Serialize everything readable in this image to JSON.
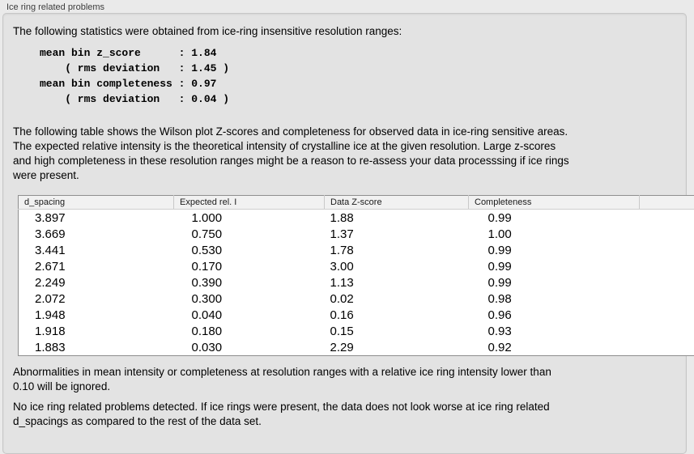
{
  "panel": {
    "title": "Ice ring related problems"
  },
  "stats": {
    "intro": "The following statistics were obtained from ice-ring insensitive resolution ranges:",
    "block": "mean bin z_score      : 1.84\n    ( rms deviation   : 1.45 )\nmean bin completeness : 0.97\n    ( rms deviation   : 0.04 )",
    "values": {
      "mean_bin_z_score": "1.84",
      "z_score_rms_deviation": "1.45",
      "mean_bin_completeness": "0.97",
      "completeness_rms_deviation": "0.04"
    }
  },
  "table_description": "The following table shows the Wilson plot Z-scores and completeness for observed data in ice-ring sensitive areas.\nThe expected relative intensity is the theoretical intensity of crystalline ice at the given resolution. Large z-scores\nand high completeness in these resolution ranges might be a reason to re-assess your data processsing if ice rings\nwere present.",
  "table": {
    "columns": [
      "d_spacing",
      "Expected rel. I",
      "Data Z-score",
      "Completeness"
    ],
    "rows": [
      [
        "3.897",
        "1.000",
        "1.88",
        "0.99"
      ],
      [
        "3.669",
        "0.750",
        "1.37",
        "1.00"
      ],
      [
        "3.441",
        "0.530",
        "1.78",
        "0.99"
      ],
      [
        "2.671",
        "0.170",
        "3.00",
        "0.99"
      ],
      [
        "2.249",
        "0.390",
        "1.13",
        "0.99"
      ],
      [
        "2.072",
        "0.300",
        "0.02",
        "0.98"
      ],
      [
        "1.948",
        "0.040",
        "0.16",
        "0.96"
      ],
      [
        "1.918",
        "0.180",
        "0.15",
        "0.93"
      ],
      [
        "1.883",
        "0.030",
        "2.29",
        "0.92"
      ]
    ]
  },
  "notes": {
    "ignored_note": "Abnormalities in mean intensity or completeness at resolution ranges with a relative ice ring intensity lower than\n0.10 will be ignored.",
    "conclusion": "No ice ring related problems detected. If ice rings were present, the data does not look worse at ice ring related\nd_spacings as compared to the rest of the data set."
  },
  "colors": {
    "page_bg": "#eaeaea",
    "group_box_bg": "#e3e3e3",
    "group_box_border": "#c6c6c6",
    "table_bg": "#ffffff",
    "table_border": "#8f8f8f",
    "table_header_bg": "#f1f1f1"
  }
}
